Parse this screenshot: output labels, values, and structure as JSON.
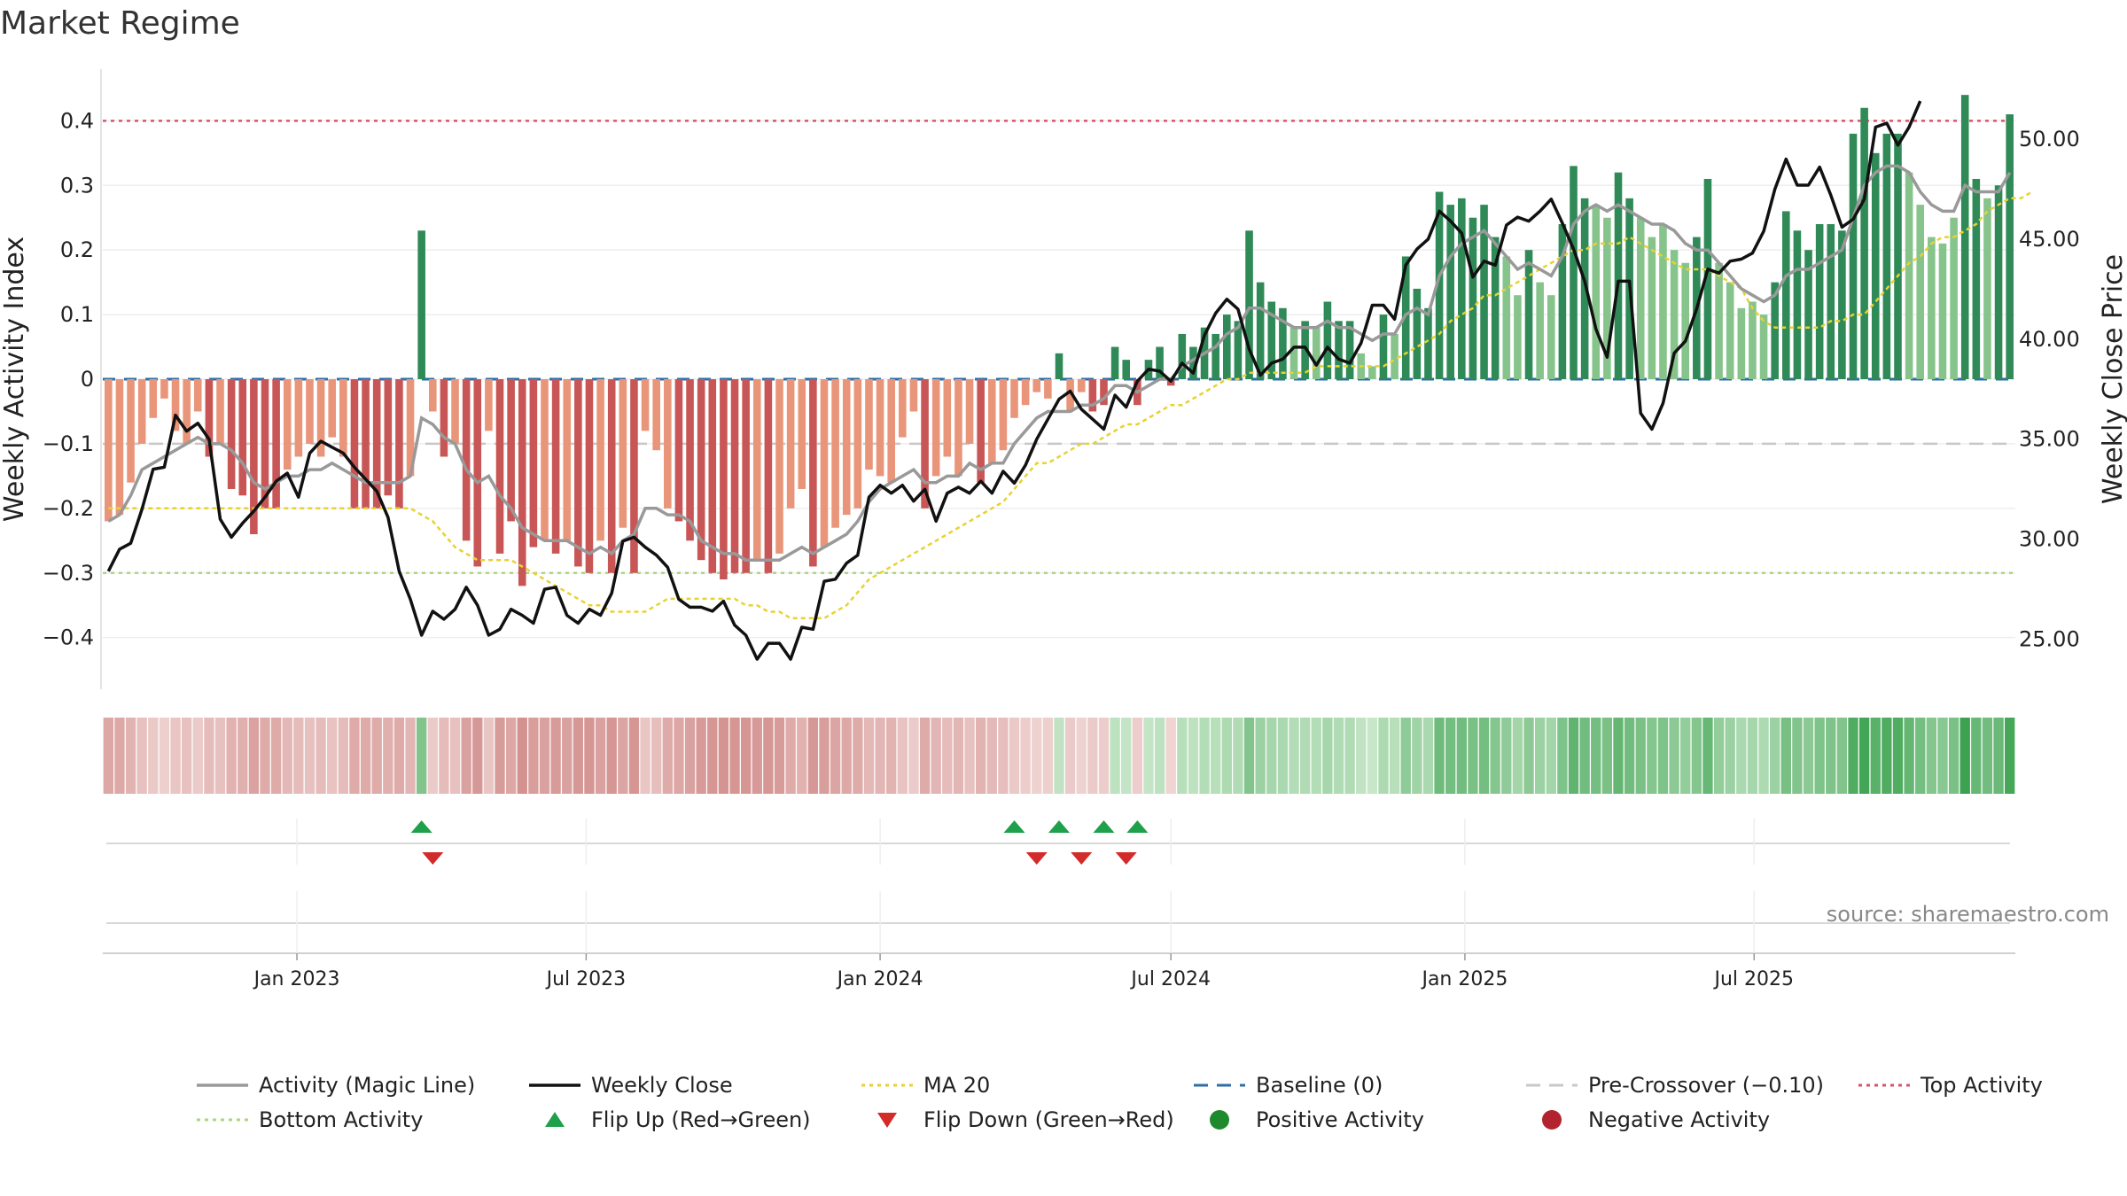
{
  "title": "Market Regime",
  "source": "source: sharemaestro.com",
  "chart_data": {
    "type": "bar",
    "ylabel_left": "Weekly Activity Index",
    "ylabel_right": "Weekly Close Price",
    "ylim_left": [
      -0.48,
      0.48
    ],
    "ylim_right": [
      22.5,
      53.5
    ],
    "left_ticks": [
      {
        "v": 0.4,
        "label": "0.4"
      },
      {
        "v": 0.3,
        "label": "0.3"
      },
      {
        "v": 0.2,
        "label": "0.2"
      },
      {
        "v": 0.1,
        "label": "0.1"
      },
      {
        "v": 0,
        "label": "0"
      },
      {
        "v": -0.1,
        "label": "−0.1"
      },
      {
        "v": -0.2,
        "label": "−0.2"
      },
      {
        "v": -0.3,
        "label": "−0.3"
      },
      {
        "v": -0.4,
        "label": "−0.4"
      }
    ],
    "right_ticks": [
      {
        "v": 50,
        "label": "50.00"
      },
      {
        "v": 45,
        "label": "45.00"
      },
      {
        "v": 40,
        "label": "40.00"
      },
      {
        "v": 35,
        "label": "35.00"
      },
      {
        "v": 30,
        "label": "30.00"
      },
      {
        "v": 25,
        "label": "25.00"
      }
    ],
    "x_start": "2022-09-05",
    "x_ticks": [
      {
        "date": "2023-01-01",
        "label": "Jan 2023"
      },
      {
        "date": "2023-07-01",
        "label": "Jul 2023"
      },
      {
        "date": "2024-01-01",
        "label": "Jan 2024"
      },
      {
        "date": "2024-07-01",
        "label": "Jul 2024"
      },
      {
        "date": "2025-01-01",
        "label": "Jan 2025"
      },
      {
        "date": "2025-07-01",
        "label": "Jul 2025"
      }
    ],
    "reference_lines": {
      "baseline": 0,
      "pre_crossover": -0.1,
      "top_activity": 0.4,
      "bottom_activity": -0.3
    },
    "activity": [
      -0.22,
      -0.21,
      -0.16,
      -0.1,
      -0.06,
      -0.03,
      -0.08,
      -0.1,
      -0.05,
      -0.12,
      -0.1,
      -0.17,
      -0.18,
      -0.24,
      -0.2,
      -0.2,
      -0.14,
      -0.12,
      -0.1,
      -0.12,
      -0.09,
      -0.12,
      -0.2,
      -0.2,
      -0.2,
      -0.18,
      -0.2,
      -0.15,
      0.23,
      -0.05,
      -0.12,
      -0.1,
      -0.25,
      -0.29,
      -0.08,
      -0.27,
      -0.22,
      -0.32,
      -0.26,
      -0.25,
      -0.27,
      -0.25,
      -0.29,
      -0.3,
      -0.25,
      -0.3,
      -0.23,
      -0.3,
      -0.08,
      -0.11,
      -0.2,
      -0.22,
      -0.25,
      -0.28,
      -0.3,
      -0.31,
      -0.3,
      -0.3,
      -0.28,
      -0.3,
      -0.27,
      -0.2,
      -0.17,
      -0.29,
      -0.26,
      -0.23,
      -0.21,
      -0.2,
      -0.14,
      -0.15,
      -0.16,
      -0.09,
      -0.05,
      -0.2,
      -0.15,
      -0.12,
      -0.15,
      -0.1,
      -0.16,
      -0.13,
      -0.11,
      -0.06,
      -0.04,
      -0.02,
      -0.03,
      0.04,
      -0.05,
      -0.02,
      -0.05,
      -0.04,
      0.05,
      0.03,
      -0.04,
      0.03,
      0.05,
      -0.01,
      0.07,
      0.05,
      0.08,
      0.07,
      0.1,
      0.09,
      0.23,
      0.15,
      0.12,
      0.11,
      0.08,
      0.09,
      0.08,
      0.12,
      0.09,
      0.09,
      0.04,
      0.02,
      0.1,
      0.07,
      0.19,
      0.14,
      0.11,
      0.29,
      0.27,
      0.28,
      0.25,
      0.27,
      0.22,
      0.19,
      0.13,
      0.2,
      0.15,
      0.13,
      0.24,
      0.33,
      0.28,
      0.27,
      0.25,
      0.32,
      0.28,
      0.25,
      0.22,
      0.24,
      0.2,
      0.18,
      0.22,
      0.31,
      0.18,
      0.15,
      0.11,
      0.12,
      0.1,
      0.15,
      0.26,
      0.23,
      0.2,
      0.24,
      0.24,
      0.23,
      0.38,
      0.42,
      0.35,
      0.38,
      0.38,
      0.32,
      0.27,
      0.22,
      0.21,
      0.25,
      0.44,
      0.31,
      0.28,
      0.3,
      0.41
    ],
    "magic_line": [
      -0.22,
      -0.21,
      -0.18,
      -0.14,
      -0.13,
      -0.12,
      -0.11,
      -0.1,
      -0.09,
      -0.1,
      -0.1,
      -0.11,
      -0.13,
      -0.16,
      -0.17,
      -0.16,
      -0.15,
      -0.15,
      -0.14,
      -0.14,
      -0.13,
      -0.14,
      -0.15,
      -0.16,
      -0.16,
      -0.16,
      -0.16,
      -0.15,
      -0.06,
      -0.07,
      -0.09,
      -0.1,
      -0.14,
      -0.16,
      -0.15,
      -0.18,
      -0.2,
      -0.23,
      -0.24,
      -0.25,
      -0.25,
      -0.25,
      -0.26,
      -0.27,
      -0.26,
      -0.27,
      -0.25,
      -0.24,
      -0.2,
      -0.2,
      -0.21,
      -0.21,
      -0.22,
      -0.25,
      -0.26,
      -0.27,
      -0.27,
      -0.28,
      -0.28,
      -0.28,
      -0.28,
      -0.27,
      -0.26,
      -0.27,
      -0.26,
      -0.25,
      -0.24,
      -0.22,
      -0.19,
      -0.17,
      -0.16,
      -0.15,
      -0.14,
      -0.16,
      -0.16,
      -0.15,
      -0.15,
      -0.13,
      -0.14,
      -0.13,
      -0.13,
      -0.1,
      -0.08,
      -0.06,
      -0.05,
      -0.05,
      -0.05,
      -0.04,
      -0.04,
      -0.03,
      -0.01,
      -0.01,
      -0.02,
      -0.01,
      0.0,
      0.0,
      0.02,
      0.03,
      0.04,
      0.05,
      0.07,
      0.08,
      0.11,
      0.11,
      0.1,
      0.09,
      0.08,
      0.08,
      0.08,
      0.09,
      0.08,
      0.08,
      0.07,
      0.06,
      0.07,
      0.07,
      0.1,
      0.11,
      0.1,
      0.16,
      0.19,
      0.21,
      0.22,
      0.23,
      0.21,
      0.19,
      0.17,
      0.18,
      0.17,
      0.16,
      0.19,
      0.24,
      0.26,
      0.27,
      0.26,
      0.27,
      0.26,
      0.25,
      0.24,
      0.24,
      0.23,
      0.21,
      0.2,
      0.2,
      0.18,
      0.16,
      0.14,
      0.13,
      0.12,
      0.13,
      0.16,
      0.17,
      0.17,
      0.18,
      0.19,
      0.2,
      0.25,
      0.3,
      0.32,
      0.33,
      0.33,
      0.32,
      0.29,
      0.27,
      0.26,
      0.26,
      0.3,
      0.29,
      0.29,
      0.29,
      0.32
    ],
    "ma20": [
      -0.2,
      -0.2,
      -0.2,
      -0.2,
      -0.2,
      -0.2,
      -0.2,
      -0.2,
      -0.2,
      -0.2,
      -0.2,
      -0.2,
      -0.2,
      -0.2,
      -0.2,
      -0.2,
      -0.2,
      -0.2,
      -0.2,
      -0.2,
      -0.2,
      -0.2,
      -0.2,
      -0.2,
      -0.2,
      -0.2,
      -0.2,
      -0.2,
      -0.21,
      -0.22,
      -0.24,
      -0.26,
      -0.27,
      -0.28,
      -0.28,
      -0.28,
      -0.28,
      -0.29,
      -0.3,
      -0.31,
      -0.32,
      -0.33,
      -0.34,
      -0.35,
      -0.35,
      -0.36,
      -0.36,
      -0.36,
      -0.36,
      -0.35,
      -0.34,
      -0.34,
      -0.34,
      -0.34,
      -0.34,
      -0.34,
      -0.34,
      -0.35,
      -0.35,
      -0.36,
      -0.36,
      -0.37,
      -0.37,
      -0.37,
      -0.37,
      -0.36,
      -0.35,
      -0.33,
      -0.31,
      -0.3,
      -0.29,
      -0.28,
      -0.27,
      -0.26,
      -0.25,
      -0.24,
      -0.23,
      -0.22,
      -0.21,
      -0.2,
      -0.19,
      -0.17,
      -0.15,
      -0.13,
      -0.13,
      -0.12,
      -0.11,
      -0.1,
      -0.1,
      -0.09,
      -0.08,
      -0.07,
      -0.07,
      -0.06,
      -0.05,
      -0.04,
      -0.04,
      -0.03,
      -0.02,
      -0.01,
      0.0,
      0.0,
      0.01,
      0.01,
      0.01,
      0.01,
      0.01,
      0.01,
      0.02,
      0.02,
      0.02,
      0.02,
      0.02,
      0.02,
      0.02,
      0.03,
      0.04,
      0.05,
      0.06,
      0.07,
      0.09,
      0.1,
      0.11,
      0.13,
      0.13,
      0.14,
      0.15,
      0.16,
      0.17,
      0.18,
      0.19,
      0.2,
      0.2,
      0.21,
      0.21,
      0.21,
      0.22,
      0.21,
      0.2,
      0.19,
      0.18,
      0.17,
      0.17,
      0.17,
      0.16,
      0.15,
      0.14,
      0.11,
      0.09,
      0.08,
      0.08,
      0.08,
      0.08,
      0.08,
      0.09,
      0.09,
      0.1,
      0.1,
      0.12,
      0.14,
      0.16,
      0.18,
      0.19,
      0.21,
      0.22,
      0.22,
      0.23,
      0.24,
      0.26,
      0.27,
      0.28,
      0.28,
      0.29
    ],
    "weekly_close": [
      28.4,
      29.5,
      29.8,
      31.5,
      33.5,
      33.6,
      36.2,
      35.4,
      35.8,
      35.0,
      31.0,
      30.1,
      30.8,
      31.4,
      32.1,
      32.9,
      33.3,
      32.1,
      34.3,
      34.9,
      34.6,
      34.3,
      33.6,
      33.0,
      32.4,
      31.1,
      28.4,
      27.0,
      25.2,
      26.4,
      26.0,
      26.5,
      27.6,
      26.7,
      25.2,
      25.5,
      26.5,
      26.2,
      25.8,
      27.5,
      27.6,
      26.2,
      25.8,
      26.5,
      26.2,
      27.3,
      29.9,
      30.1,
      29.6,
      29.2,
      28.6,
      27.0,
      26.6,
      26.6,
      26.4,
      26.9,
      25.7,
      25.2,
      24.0,
      24.8,
      24.8,
      24.0,
      25.6,
      25.5,
      27.9,
      28.0,
      28.8,
      29.2,
      32.1,
      32.7,
      32.3,
      32.7,
      31.9,
      32.5,
      30.9,
      32.3,
      32.6,
      32.3,
      32.9,
      32.3,
      33.4,
      32.8,
      33.7,
      35.0,
      36.0,
      37.0,
      37.4,
      36.5,
      36.0,
      35.5,
      37.2,
      36.6,
      37.9,
      38.5,
      38.4,
      37.9,
      38.8,
      38.3,
      40.2,
      41.3,
      42.0,
      41.5,
      39.5,
      38.2,
      38.8,
      39.0,
      39.6,
      39.6,
      38.7,
      39.6,
      39.0,
      38.8,
      39.8,
      41.7,
      41.7,
      41.0,
      43.7,
      44.5,
      45.0,
      46.4,
      45.9,
      45.3,
      43.1,
      43.9,
      43.7,
      45.7,
      46.1,
      45.9,
      46.4,
      47.0,
      45.8,
      44.5,
      42.9,
      40.5,
      39.1,
      42.9,
      42.9,
      36.3,
      35.5,
      36.8,
      39.3,
      39.9,
      41.5,
      43.5,
      43.3,
      43.9,
      44.0,
      44.3,
      45.4,
      47.5,
      49.0,
      47.7,
      47.7,
      48.6,
      47.2,
      45.6,
      46.0,
      47.0,
      50.6,
      50.8,
      49.7,
      50.6,
      51.9
    ],
    "flip_up_dates": [
      "2023-03-20",
      "2024-03-25",
      "2024-04-22",
      "2024-05-20",
      "2024-06-10"
    ],
    "flip_down_dates": [
      "2023-03-27",
      "2024-04-08",
      "2024-05-06",
      "2024-06-03"
    ],
    "regime_strip": "intensity of weekly activity (red = negative, green = positive)",
    "legend": [
      {
        "key": "magic",
        "label": "Activity (Magic Line)",
        "kind": "line",
        "color": "#999999"
      },
      {
        "key": "close",
        "label": "Weekly Close",
        "kind": "line",
        "color": "#111111"
      },
      {
        "key": "ma20",
        "label": "MA 20",
        "kind": "dotted",
        "color": "#e8d233"
      },
      {
        "key": "baseline",
        "label": "Baseline (0)",
        "kind": "dashed",
        "color": "#2e6ea8"
      },
      {
        "key": "precross",
        "label": "Pre-Crossover (−0.10)",
        "kind": "dashed",
        "color": "#c8c8c8"
      },
      {
        "key": "top",
        "label": "Top Activity",
        "kind": "dotted",
        "color": "#d9536e"
      },
      {
        "key": "bottom",
        "label": "Bottom Activity",
        "kind": "dotted",
        "color": "#a8d878"
      },
      {
        "key": "flipup",
        "label": "Flip Up (Red→Green)",
        "kind": "tri-up",
        "color": "#1fa04a"
      },
      {
        "key": "flipdown",
        "label": "Flip Down (Green→Red)",
        "kind": "tri-down",
        "color": "#d32a2a"
      },
      {
        "key": "pos",
        "label": "Positive Activity",
        "kind": "dot",
        "color": "#1e8a2e"
      },
      {
        "key": "neg",
        "label": "Negative Activity",
        "kind": "dot",
        "color": "#b3232e"
      }
    ]
  }
}
